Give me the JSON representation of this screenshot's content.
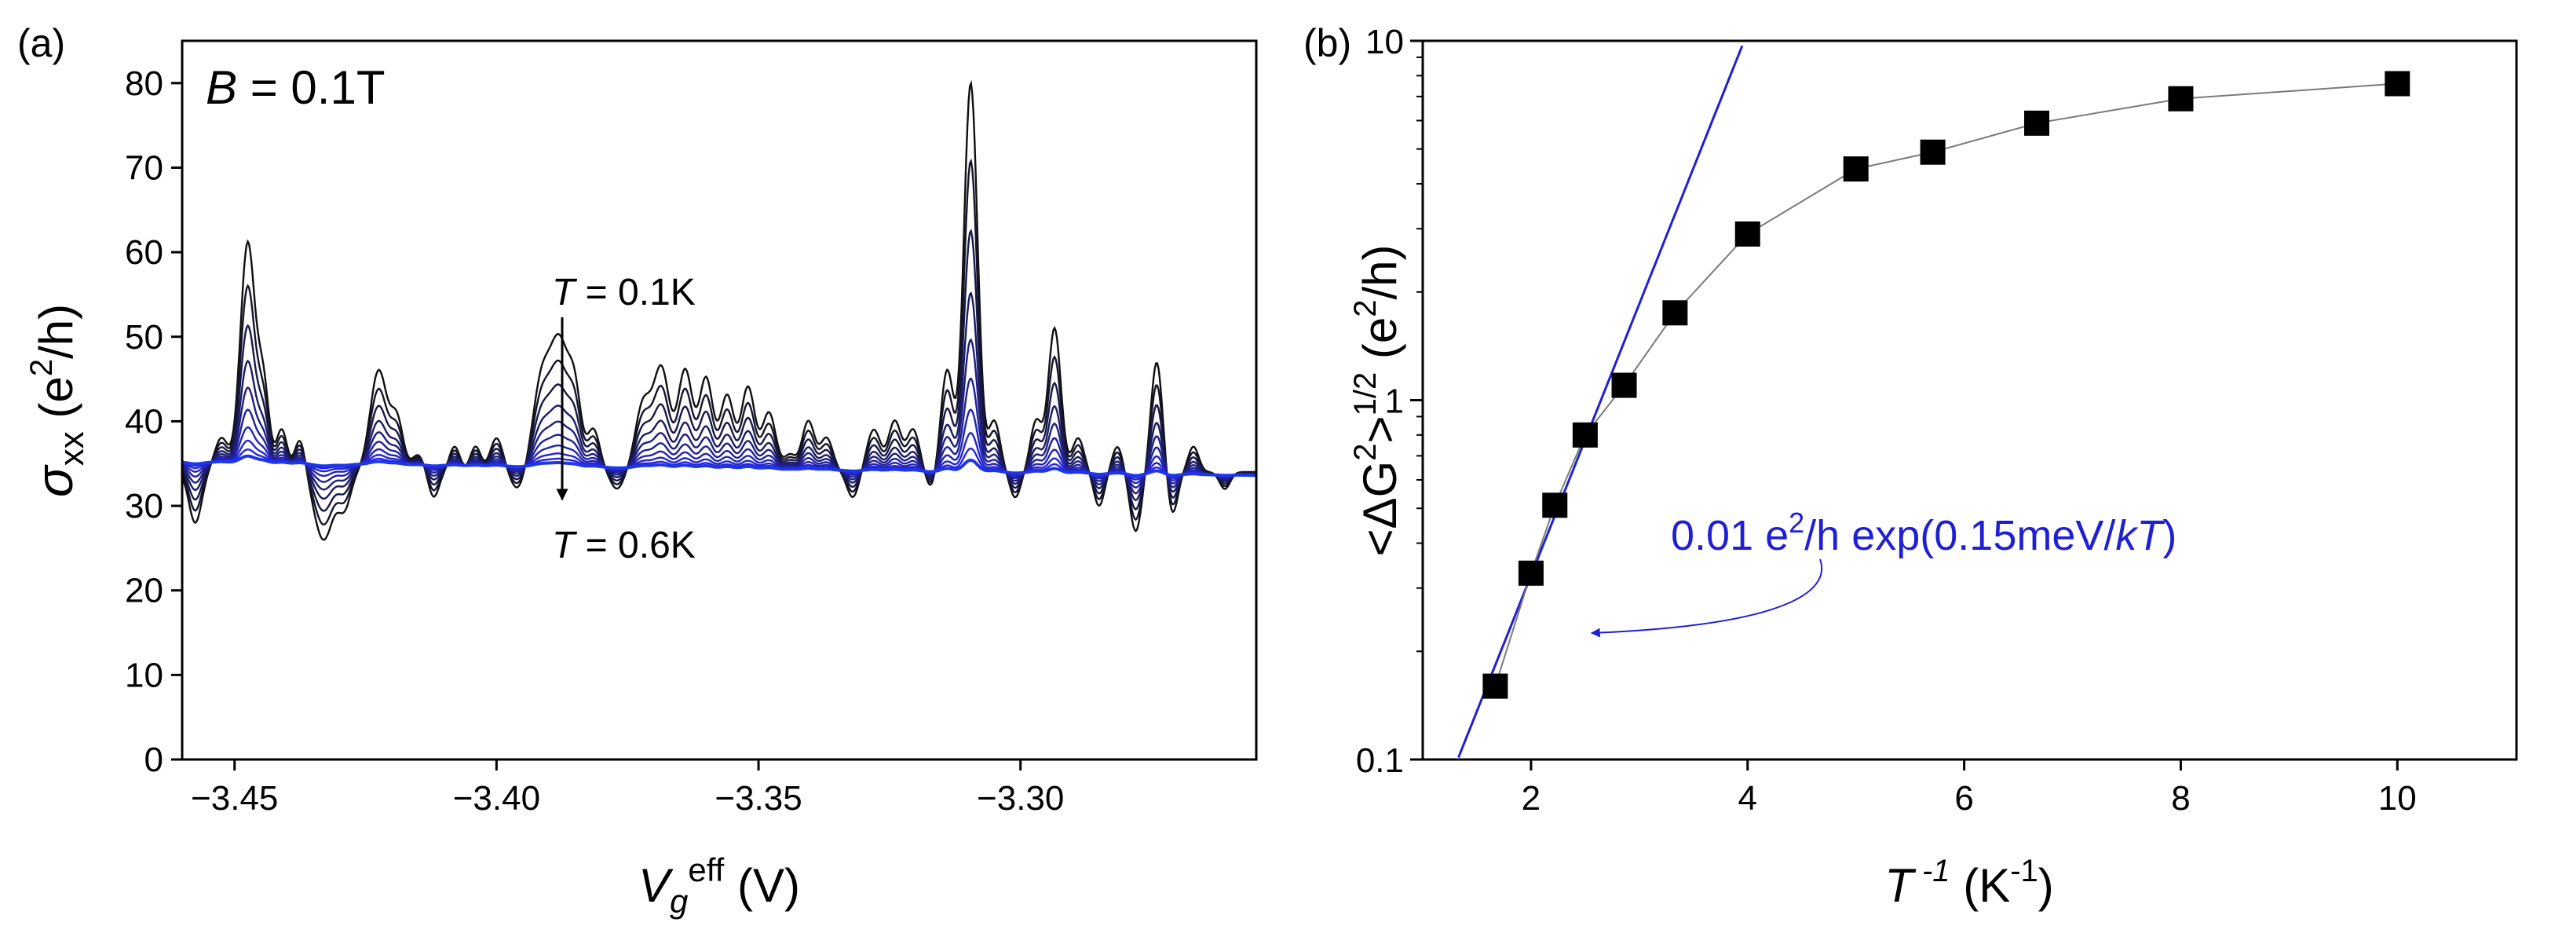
{
  "chart_data": [
    {
      "panel": "(a)",
      "type": "line",
      "annotation_field": {
        "symbol": "B",
        "text": " = 0.1T"
      },
      "annotation_top": {
        "symbol": "T",
        "text": " = 0.1K"
      },
      "annotation_bottom": {
        "symbol": "T",
        "text": " = 0.6K"
      },
      "xlabel": {
        "main": "V",
        "sub": "g",
        "sup": "eff",
        "unit": " (V)"
      },
      "ylabel": {
        "main": "σ",
        "sub": "xx",
        "unit_pre": " (e",
        "unit_sup": "2",
        "unit_post": "/h)"
      },
      "xlim": [
        -3.46,
        -3.255
      ],
      "ylim": [
        0,
        85
      ],
      "xticks": [
        -3.45,
        -3.4,
        -3.35,
        -3.3
      ],
      "xtick_labels": [
        "−3.45",
        "−3.40",
        "−3.35",
        "−3.30"
      ],
      "yticks": [
        0,
        10,
        20,
        30,
        40,
        50,
        60,
        70,
        80
      ],
      "ytick_labels": [
        "0",
        "10",
        "20",
        "30",
        "40",
        "50",
        "60",
        "70",
        "80"
      ],
      "baseline": 34,
      "x_start": -3.46,
      "x_end": -3.255,
      "features": [
        {
          "x": -3.4575,
          "a": -6,
          "w": 0.0012
        },
        {
          "x": -3.4525,
          "a": 4,
          "w": 0.0013
        },
        {
          "x": -3.4475,
          "a": 27,
          "w": 0.0014
        },
        {
          "x": -3.4445,
          "a": 10,
          "w": 0.0011
        },
        {
          "x": -3.441,
          "a": 5,
          "w": 0.001
        },
        {
          "x": -3.4375,
          "a": 4,
          "w": 0.001
        },
        {
          "x": -3.433,
          "a": -8,
          "w": 0.0018
        },
        {
          "x": -3.429,
          "a": -4,
          "w": 0.0012
        },
        {
          "x": -3.4225,
          "a": 12,
          "w": 0.0016
        },
        {
          "x": -3.419,
          "a": 6,
          "w": 0.0012
        },
        {
          "x": -3.415,
          "a": 2,
          "w": 0.0012
        },
        {
          "x": -3.412,
          "a": -3,
          "w": 0.001
        },
        {
          "x": -3.408,
          "a": 3,
          "w": 0.001
        },
        {
          "x": -3.404,
          "a": 3,
          "w": 0.001
        },
        {
          "x": -3.4,
          "a": 4,
          "w": 0.0012
        },
        {
          "x": -3.396,
          "a": -2,
          "w": 0.0012
        },
        {
          "x": -3.3915,
          "a": 10,
          "w": 0.0016
        },
        {
          "x": -3.388,
          "a": 15,
          "w": 0.0018
        },
        {
          "x": -3.385,
          "a": 8,
          "w": 0.0012
        },
        {
          "x": -3.3815,
          "a": 5,
          "w": 0.0012
        },
        {
          "x": -3.377,
          "a": -2,
          "w": 0.0012
        },
        {
          "x": -3.372,
          "a": 8,
          "w": 0.0015
        },
        {
          "x": -3.3685,
          "a": 12,
          "w": 0.0015
        },
        {
          "x": -3.364,
          "a": 12,
          "w": 0.0014
        },
        {
          "x": -3.36,
          "a": 11,
          "w": 0.0013
        },
        {
          "x": -3.356,
          "a": 9,
          "w": 0.0013
        },
        {
          "x": -3.352,
          "a": 10,
          "w": 0.0013
        },
        {
          "x": -3.348,
          "a": 7,
          "w": 0.0013
        },
        {
          "x": -3.344,
          "a": 2,
          "w": 0.0011
        },
        {
          "x": -3.3405,
          "a": 6,
          "w": 0.0012
        },
        {
          "x": -3.337,
          "a": 4,
          "w": 0.0012
        },
        {
          "x": -3.332,
          "a": -3,
          "w": 0.0011
        },
        {
          "x": -3.328,
          "a": 5,
          "w": 0.0013
        },
        {
          "x": -3.324,
          "a": 6,
          "w": 0.0012
        },
        {
          "x": -3.3205,
          "a": 5,
          "w": 0.0012
        },
        {
          "x": -3.317,
          "a": -2,
          "w": 0.001
        },
        {
          "x": -3.314,
          "a": 12,
          "w": 0.0012
        },
        {
          "x": -3.3095,
          "a": 46,
          "w": 0.0013
        },
        {
          "x": -3.305,
          "a": 6,
          "w": 0.0011
        },
        {
          "x": -3.301,
          "a": -3,
          "w": 0.001
        },
        {
          "x": -3.297,
          "a": 6,
          "w": 0.0011
        },
        {
          "x": -3.2935,
          "a": 17,
          "w": 0.0012
        },
        {
          "x": -3.289,
          "a": 4,
          "w": 0.0011
        },
        {
          "x": -3.285,
          "a": -4,
          "w": 0.001
        },
        {
          "x": -3.2815,
          "a": 3,
          "w": 0.001
        },
        {
          "x": -3.278,
          "a": -7,
          "w": 0.0011
        },
        {
          "x": -3.274,
          "a": 13,
          "w": 0.0011
        },
        {
          "x": -3.271,
          "a": -5,
          "w": 0.001
        },
        {
          "x": -3.267,
          "a": 3,
          "w": 0.001
        },
        {
          "x": -3.261,
          "a": -2,
          "w": 0.001
        }
      ],
      "series": [
        {
          "T_K": 0.1,
          "scale": 1.0,
          "color": "#101010"
        },
        {
          "T_K": 0.15,
          "scale": 0.8,
          "color": "#14142c"
        },
        {
          "T_K": 0.2,
          "scale": 0.62,
          "color": "#181846"
        },
        {
          "T_K": 0.25,
          "scale": 0.46,
          "color": "#1b1b62"
        },
        {
          "T_K": 0.3,
          "scale": 0.34,
          "color": "#1e1e7e"
        },
        {
          "T_K": 0.35,
          "scale": 0.24,
          "color": "#20209a"
        },
        {
          "T_K": 0.4,
          "scale": 0.16,
          "color": "#2222b4"
        },
        {
          "T_K": 0.45,
          "scale": 0.1,
          "color": "#2424cc"
        },
        {
          "T_K": 0.5,
          "scale": 0.06,
          "color": "#2525e0"
        },
        {
          "T_K": 0.6,
          "scale": 0.03,
          "color": "#1f36e8"
        }
      ]
    },
    {
      "panel": "(b)",
      "type": "scatter",
      "yscale": "log",
      "xlabel": {
        "main": "T",
        "sup": " -1",
        "unit_pre": " (K",
        "unit_sup": "-1",
        "unit_post": ")"
      },
      "ylabel": {
        "pre": "<ΔG",
        "sup": "2",
        "post": ">",
        "sup2": "1/2",
        "unit_pre": " (e",
        "unit_sup": "2",
        "unit_post": "/h)"
      },
      "xlim": [
        1.0,
        11.1
      ],
      "ylim": [
        0.1,
        10
      ],
      "xticks": [
        2,
        4,
        6,
        8,
        10
      ],
      "xtick_labels": [
        "2",
        "4",
        "6",
        "8",
        "10"
      ],
      "yticks": [
        0.1,
        1,
        10
      ],
      "ytick_labels": [
        "0.1",
        "1",
        "10"
      ],
      "points": [
        {
          "x": 1.67,
          "y": 0.16
        },
        {
          "x": 2.0,
          "y": 0.33
        },
        {
          "x": 2.22,
          "y": 0.51
        },
        {
          "x": 2.5,
          "y": 0.8
        },
        {
          "x": 2.86,
          "y": 1.1
        },
        {
          "x": 3.33,
          "y": 1.75
        },
        {
          "x": 4.0,
          "y": 2.9
        },
        {
          "x": 5.0,
          "y": 4.4
        },
        {
          "x": 5.71,
          "y": 4.9
        },
        {
          "x": 6.67,
          "y": 5.9
        },
        {
          "x": 8.0,
          "y": 6.9
        },
        {
          "x": 10.0,
          "y": 7.6
        }
      ],
      "fit": {
        "label_pre": "0.01 e",
        "label_sup": "2",
        "label_mid": "/h exp(0.15meV/",
        "label_it": "kT",
        "label_post": ")",
        "prefactor": 0.01,
        "energy_meV": 0.15,
        "x_range": [
          1.33,
          3.95
        ],
        "color": "#1f1fd6"
      },
      "connect_color": "#7a7a7a"
    }
  ]
}
